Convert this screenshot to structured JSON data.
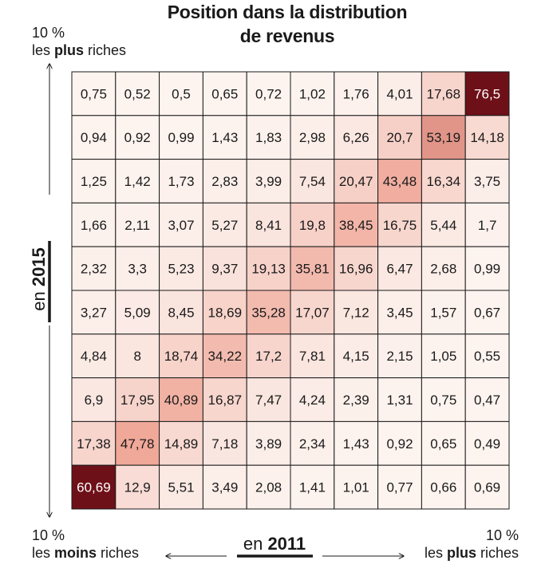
{
  "title": {
    "line1": "Position dans la distribution",
    "line2": "de revenus"
  },
  "corners": {
    "top_left": {
      "line1": "10 %",
      "pre": "les ",
      "bold": "plus",
      "post": " riches"
    },
    "bottom_left": {
      "line1": "10 %",
      "pre": "les ",
      "bold": "moins",
      "post": " riches"
    },
    "bottom_right": {
      "line1": "10 %",
      "pre": "les ",
      "bold": "plus",
      "post": " riches"
    }
  },
  "chart_data": {
    "type": "heatmap",
    "title": "Position dans la distribution de revenus",
    "xlabel_prefix": "en",
    "xlabel_year": "2011",
    "ylabel_prefix": "en",
    "ylabel_year": "2015",
    "x_direction": [
      "10 % les moins riches",
      "10 % les plus riches"
    ],
    "y_direction": [
      "10 % les moins riches",
      "10 % les plus riches"
    ],
    "rows": [
      [
        "0,75",
        "0,52",
        "0,5",
        "0,65",
        "0,72",
        "1,02",
        "1,76",
        "4,01",
        "17,68",
        "76,5"
      ],
      [
        "0,94",
        "0,92",
        "0,99",
        "1,43",
        "1,83",
        "2,98",
        "6,26",
        "20,7",
        "53,19",
        "14,18"
      ],
      [
        "1,25",
        "1,42",
        "1,73",
        "2,83",
        "3,99",
        "7,54",
        "20,47",
        "43,48",
        "16,34",
        "3,75"
      ],
      [
        "1,66",
        "2,11",
        "3,07",
        "5,27",
        "8,41",
        "19,8",
        "38,45",
        "16,75",
        "5,44",
        "1,7"
      ],
      [
        "2,32",
        "3,3",
        "5,23",
        "9,37",
        "19,13",
        "35,81",
        "16,96",
        "6,47",
        "2,68",
        "0,99"
      ],
      [
        "3,27",
        "5,09",
        "8,45",
        "18,69",
        "35,28",
        "17,07",
        "7,12",
        "3,45",
        "1,57",
        "0,67"
      ],
      [
        "4,84",
        "8",
        "18,74",
        "34,22",
        "17,2",
        "7,81",
        "4,15",
        "2,15",
        "1,05",
        "0,55"
      ],
      [
        "6,9",
        "17,95",
        "40,89",
        "16,87",
        "7,47",
        "4,24",
        "2,39",
        "1,31",
        "0,75",
        "0,47"
      ],
      [
        "17,38",
        "47,78",
        "14,89",
        "7,18",
        "3,89",
        "2,34",
        "1,43",
        "0,92",
        "0,65",
        "0,49"
      ],
      [
        "60,69",
        "12,9",
        "5,51",
        "3,49",
        "2,08",
        "1,41",
        "1,01",
        "0,77",
        "0,66",
        "0,69"
      ]
    ],
    "colors": {
      "low": "#fdf6f2",
      "mid": "#efa596",
      "high": "#6e1018",
      "text": "#1a1a1a",
      "text_on_dark": "#ffffff",
      "grid": "#1a1a1a"
    }
  }
}
